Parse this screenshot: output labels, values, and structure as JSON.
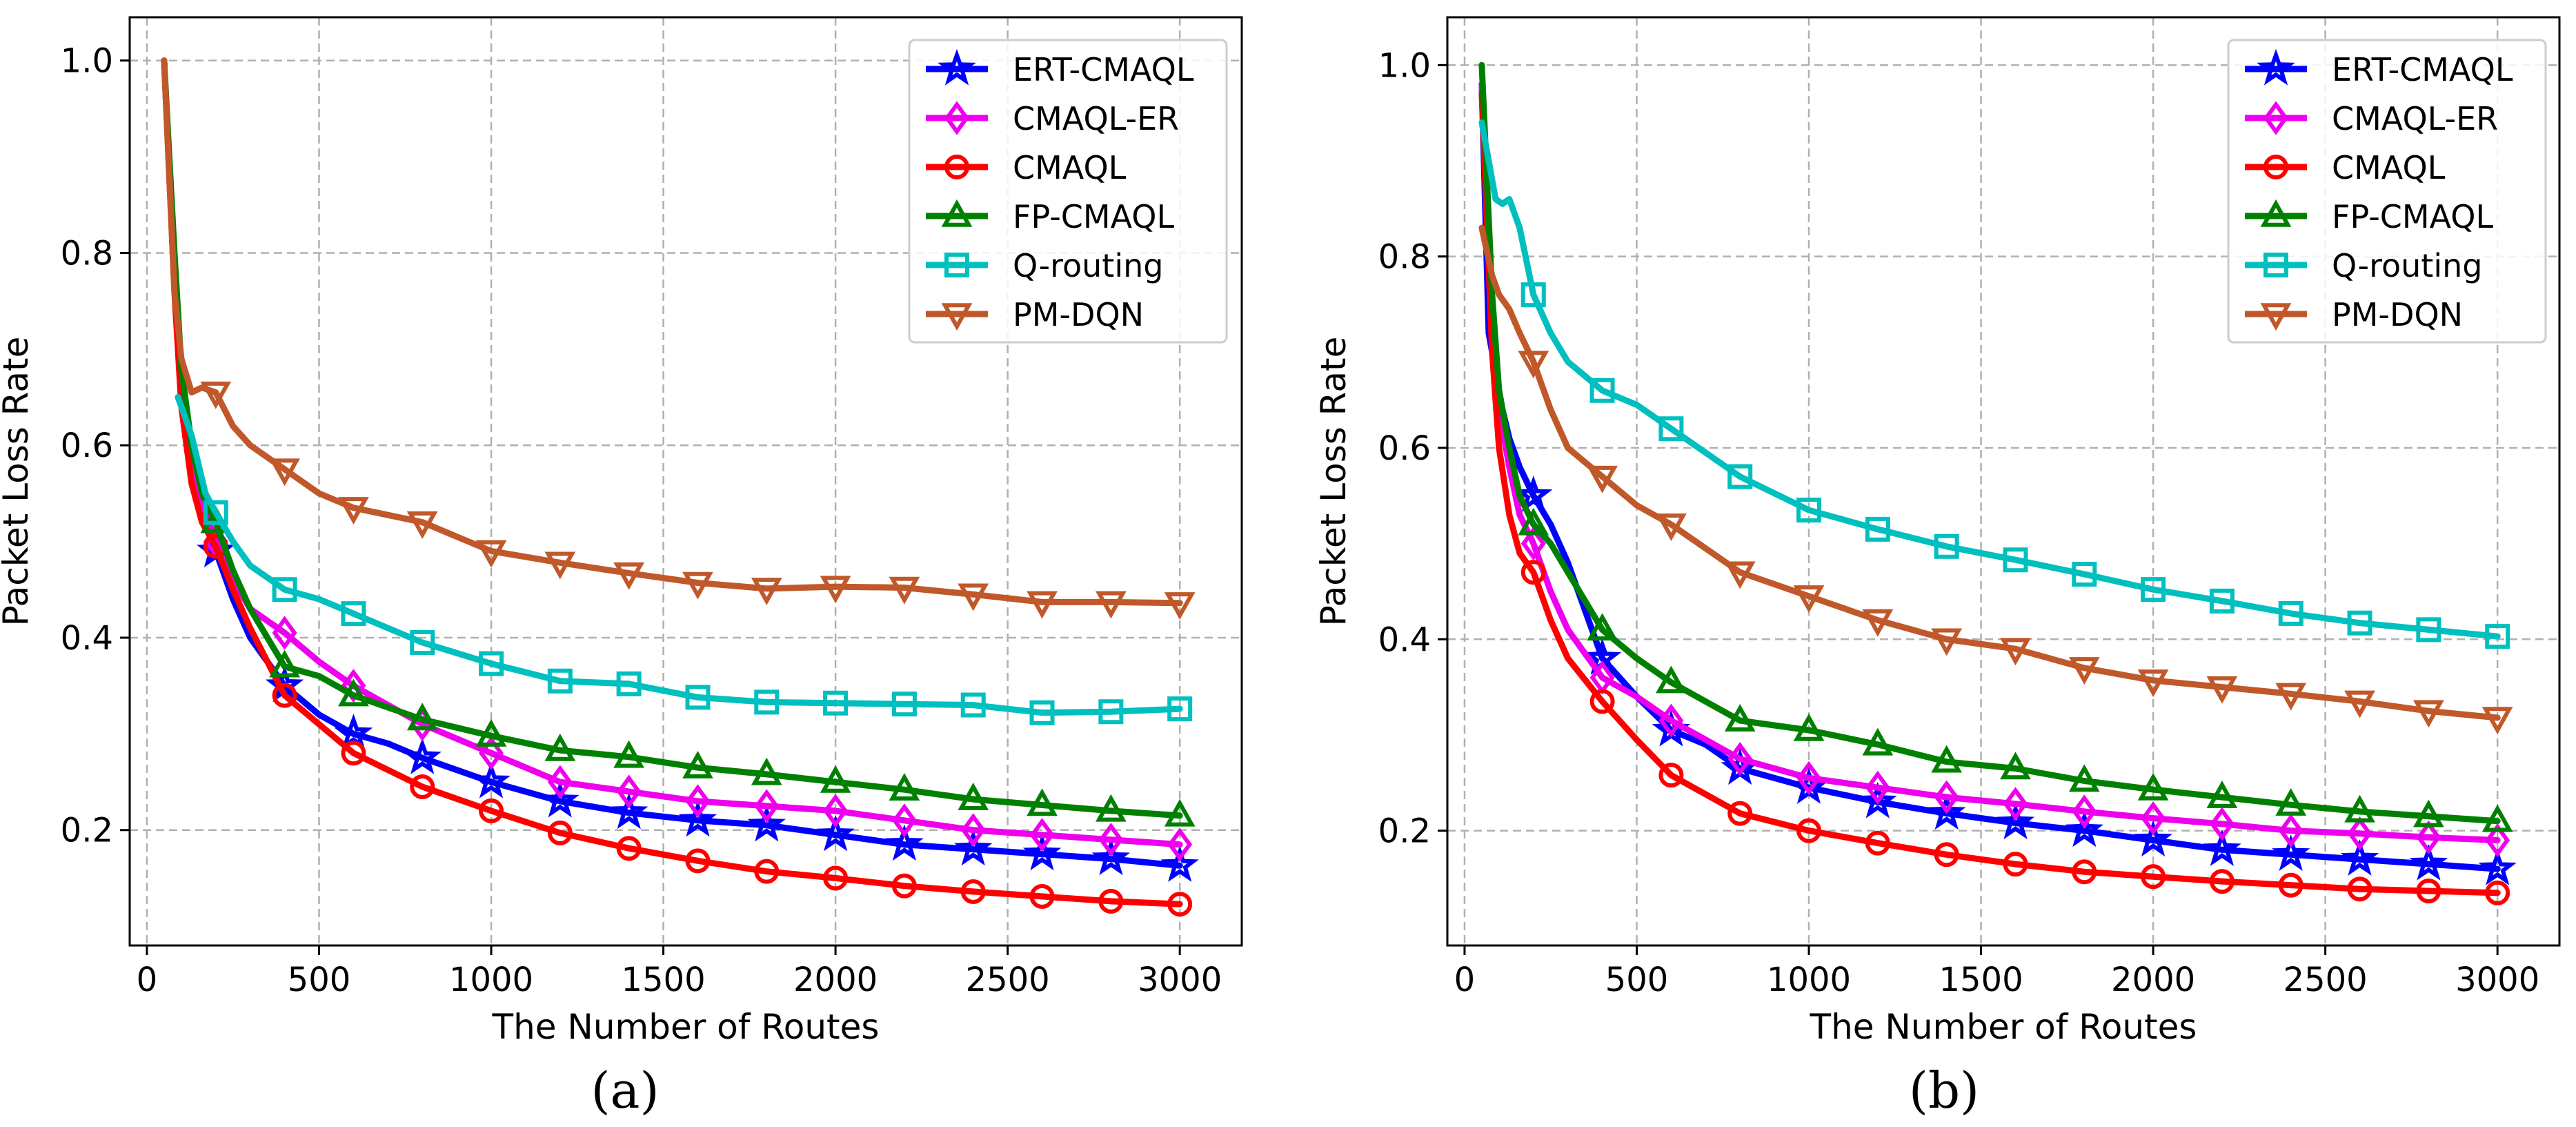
{
  "chart_data": [
    {
      "type": "line",
      "panel_label": "(a)",
      "xlabel": "The Number of Routes",
      "ylabel": "Packet Loss Rate",
      "xlim": [
        -50,
        3180
      ],
      "ylim": [
        0.08,
        1.045
      ],
      "xticks": [
        0,
        500,
        1000,
        1500,
        2000,
        2500,
        3000
      ],
      "yticks": [
        0.2,
        0.4,
        0.6,
        0.8,
        1.0
      ],
      "xtick_labels": [
        "0",
        "500",
        "1000",
        "1500",
        "2000",
        "2500",
        "3000"
      ],
      "ytick_labels": [
        "0.2",
        "0.4",
        "0.6",
        "0.8",
        "1.0"
      ],
      "grid": true,
      "legend_position": "top-right",
      "series": [
        {
          "name": "ERT-CMAQL",
          "color": "#0000ff",
          "marker": "star",
          "x": [
            50,
            80,
            100,
            130,
            160,
            200,
            250,
            300,
            400,
            500,
            600,
            700,
            800,
            1000,
            1200,
            1400,
            1600,
            1800,
            2000,
            2200,
            2400,
            2600,
            2800,
            3000
          ],
          "y": [
            1.0,
            0.78,
            0.66,
            0.58,
            0.53,
            0.49,
            0.44,
            0.4,
            0.35,
            0.32,
            0.3,
            0.29,
            0.275,
            0.25,
            0.23,
            0.218,
            0.21,
            0.205,
            0.195,
            0.185,
            0.18,
            0.175,
            0.17,
            0.163
          ]
        },
        {
          "name": "CMAQL-ER",
          "color": "#ee00ee",
          "marker": "diamond",
          "x": [
            50,
            80,
            100,
            130,
            160,
            200,
            250,
            300,
            400,
            500,
            600,
            800,
            1000,
            1200,
            1400,
            1600,
            1800,
            2000,
            2200,
            2400,
            2600,
            2800,
            3000
          ],
          "y": [
            1.0,
            0.78,
            0.66,
            0.58,
            0.54,
            0.5,
            0.46,
            0.43,
            0.405,
            0.375,
            0.35,
            0.31,
            0.28,
            0.25,
            0.24,
            0.23,
            0.225,
            0.22,
            0.21,
            0.2,
            0.195,
            0.19,
            0.185
          ]
        },
        {
          "name": "CMAQL",
          "color": "#ff0000",
          "marker": "circle",
          "x": [
            50,
            80,
            100,
            130,
            160,
            200,
            250,
            300,
            400,
            500,
            600,
            800,
            1000,
            1200,
            1400,
            1600,
            1800,
            2000,
            2200,
            2400,
            2600,
            2800,
            3000
          ],
          "y": [
            1.0,
            0.76,
            0.64,
            0.56,
            0.52,
            0.495,
            0.45,
            0.41,
            0.34,
            0.31,
            0.28,
            0.245,
            0.22,
            0.197,
            0.181,
            0.168,
            0.157,
            0.15,
            0.142,
            0.136,
            0.131,
            0.126,
            0.123
          ]
        },
        {
          "name": "FP-CMAQL",
          "color": "#008000",
          "marker": "triangle-up",
          "x": [
            50,
            80,
            100,
            130,
            160,
            200,
            250,
            300,
            400,
            500,
            600,
            800,
            1000,
            1200,
            1400,
            1600,
            1800,
            2000,
            2200,
            2400,
            2600,
            2800,
            3000
          ],
          "y": [
            1.0,
            0.8,
            0.68,
            0.6,
            0.55,
            0.52,
            0.47,
            0.43,
            0.37,
            0.36,
            0.34,
            0.315,
            0.298,
            0.283,
            0.276,
            0.265,
            0.258,
            0.25,
            0.242,
            0.232,
            0.226,
            0.22,
            0.215
          ]
        },
        {
          "name": "Q-routing",
          "color": "#00bfbf",
          "marker": "square",
          "x": [
            90,
            110,
            130,
            150,
            170,
            200,
            250,
            300,
            400,
            500,
            600,
            800,
            1000,
            1200,
            1400,
            1600,
            1800,
            2000,
            2200,
            2400,
            2600,
            2800,
            3000
          ],
          "y": [
            0.65,
            0.63,
            0.61,
            0.58,
            0.55,
            0.53,
            0.5,
            0.475,
            0.45,
            0.44,
            0.425,
            0.395,
            0.373,
            0.355,
            0.352,
            0.338,
            0.333,
            0.332,
            0.331,
            0.33,
            0.322,
            0.323,
            0.326
          ]
        },
        {
          "name": "PM-DQN",
          "color": "#c0582a",
          "marker": "triangle-down",
          "x": [
            50,
            80,
            100,
            130,
            160,
            200,
            250,
            300,
            400,
            500,
            600,
            800,
            1000,
            1200,
            1400,
            1600,
            1800,
            2000,
            2200,
            2400,
            2600,
            2800,
            3000
          ],
          "y": [
            1.0,
            0.76,
            0.69,
            0.655,
            0.66,
            0.655,
            0.62,
            0.6,
            0.575,
            0.55,
            0.535,
            0.52,
            0.49,
            0.478,
            0.467,
            0.457,
            0.451,
            0.453,
            0.452,
            0.445,
            0.437,
            0.437,
            0.436
          ]
        }
      ]
    },
    {
      "type": "line",
      "panel_label": "(b)",
      "xlabel": "The Number of Routes",
      "ylabel": "Packet Loss Rate",
      "xlim": [
        -50,
        3180
      ],
      "ylim": [
        0.08,
        1.05
      ],
      "xticks": [
        0,
        500,
        1000,
        1500,
        2000,
        2500,
        3000
      ],
      "yticks": [
        0.2,
        0.4,
        0.6,
        0.8,
        1.0
      ],
      "xtick_labels": [
        "0",
        "500",
        "1000",
        "1500",
        "2000",
        "2500",
        "3000"
      ],
      "ytick_labels": [
        "0.2",
        "0.4",
        "0.6",
        "0.8",
        "1.0"
      ],
      "grid": true,
      "legend_position": "top-right",
      "series": [
        {
          "name": "ERT-CMAQL",
          "color": "#0000ff",
          "marker": "star",
          "x": [
            50,
            70,
            90,
            110,
            130,
            160,
            200,
            250,
            300,
            400,
            500,
            600,
            700,
            800,
            1000,
            1200,
            1400,
            1600,
            1800,
            2000,
            2200,
            2400,
            2600,
            2800,
            3000
          ],
          "y": [
            0.98,
            0.72,
            0.68,
            0.64,
            0.61,
            0.58,
            0.55,
            0.52,
            0.48,
            0.38,
            0.34,
            0.305,
            0.29,
            0.265,
            0.245,
            0.23,
            0.218,
            0.208,
            0.2,
            0.19,
            0.18,
            0.175,
            0.17,
            0.165,
            0.16
          ]
        },
        {
          "name": "CMAQL-ER",
          "color": "#ee00ee",
          "marker": "diamond",
          "x": [
            50,
            80,
            100,
            130,
            160,
            200,
            250,
            300,
            400,
            500,
            600,
            800,
            1000,
            1200,
            1400,
            1600,
            1800,
            2000,
            2200,
            2400,
            2600,
            2800,
            3000
          ],
          "y": [
            0.98,
            0.72,
            0.64,
            0.58,
            0.53,
            0.5,
            0.45,
            0.41,
            0.36,
            0.34,
            0.315,
            0.275,
            0.255,
            0.245,
            0.235,
            0.228,
            0.22,
            0.213,
            0.207,
            0.2,
            0.197,
            0.193,
            0.19
          ]
        },
        {
          "name": "CMAQL",
          "color": "#ff0000",
          "marker": "circle",
          "x": [
            50,
            80,
            100,
            130,
            160,
            200,
            250,
            300,
            400,
            500,
            600,
            800,
            1000,
            1200,
            1400,
            1600,
            1800,
            2000,
            2200,
            2400,
            2600,
            2800,
            3000
          ],
          "y": [
            0.97,
            0.7,
            0.6,
            0.53,
            0.49,
            0.47,
            0.42,
            0.38,
            0.335,
            0.295,
            0.258,
            0.218,
            0.2,
            0.187,
            0.175,
            0.165,
            0.157,
            0.152,
            0.147,
            0.143,
            0.139,
            0.137,
            0.135
          ]
        },
        {
          "name": "FP-CMAQL",
          "color": "#008000",
          "marker": "triangle-up",
          "x": [
            50,
            80,
            100,
            130,
            160,
            200,
            250,
            300,
            400,
            500,
            600,
            800,
            1000,
            1200,
            1400,
            1600,
            1800,
            2000,
            2200,
            2400,
            2600,
            2800,
            3000
          ],
          "y": [
            1.0,
            0.76,
            0.66,
            0.6,
            0.55,
            0.52,
            0.5,
            0.47,
            0.41,
            0.38,
            0.355,
            0.315,
            0.305,
            0.29,
            0.272,
            0.265,
            0.252,
            0.243,
            0.235,
            0.227,
            0.22,
            0.215,
            0.21
          ]
        },
        {
          "name": "Q-routing",
          "color": "#00bfbf",
          "marker": "square",
          "x": [
            50,
            70,
            90,
            110,
            130,
            160,
            200,
            250,
            300,
            400,
            500,
            600,
            800,
            1000,
            1200,
            1400,
            1600,
            1800,
            2000,
            2200,
            2400,
            2600,
            2800,
            3000
          ],
          "y": [
            0.94,
            0.9,
            0.86,
            0.855,
            0.86,
            0.83,
            0.76,
            0.72,
            0.69,
            0.66,
            0.645,
            0.62,
            0.57,
            0.535,
            0.515,
            0.497,
            0.483,
            0.468,
            0.452,
            0.44,
            0.427,
            0.417,
            0.41,
            0.403
          ]
        },
        {
          "name": "PM-DQN",
          "color": "#c0582a",
          "marker": "triangle-down",
          "x": [
            50,
            80,
            100,
            130,
            160,
            200,
            250,
            300,
            400,
            500,
            600,
            800,
            1000,
            1200,
            1400,
            1600,
            1800,
            2000,
            2200,
            2400,
            2600,
            2800,
            3000
          ],
          "y": [
            0.83,
            0.78,
            0.76,
            0.745,
            0.72,
            0.69,
            0.64,
            0.6,
            0.57,
            0.54,
            0.52,
            0.47,
            0.445,
            0.42,
            0.4,
            0.39,
            0.37,
            0.357,
            0.35,
            0.343,
            0.335,
            0.325,
            0.318
          ]
        }
      ]
    }
  ]
}
